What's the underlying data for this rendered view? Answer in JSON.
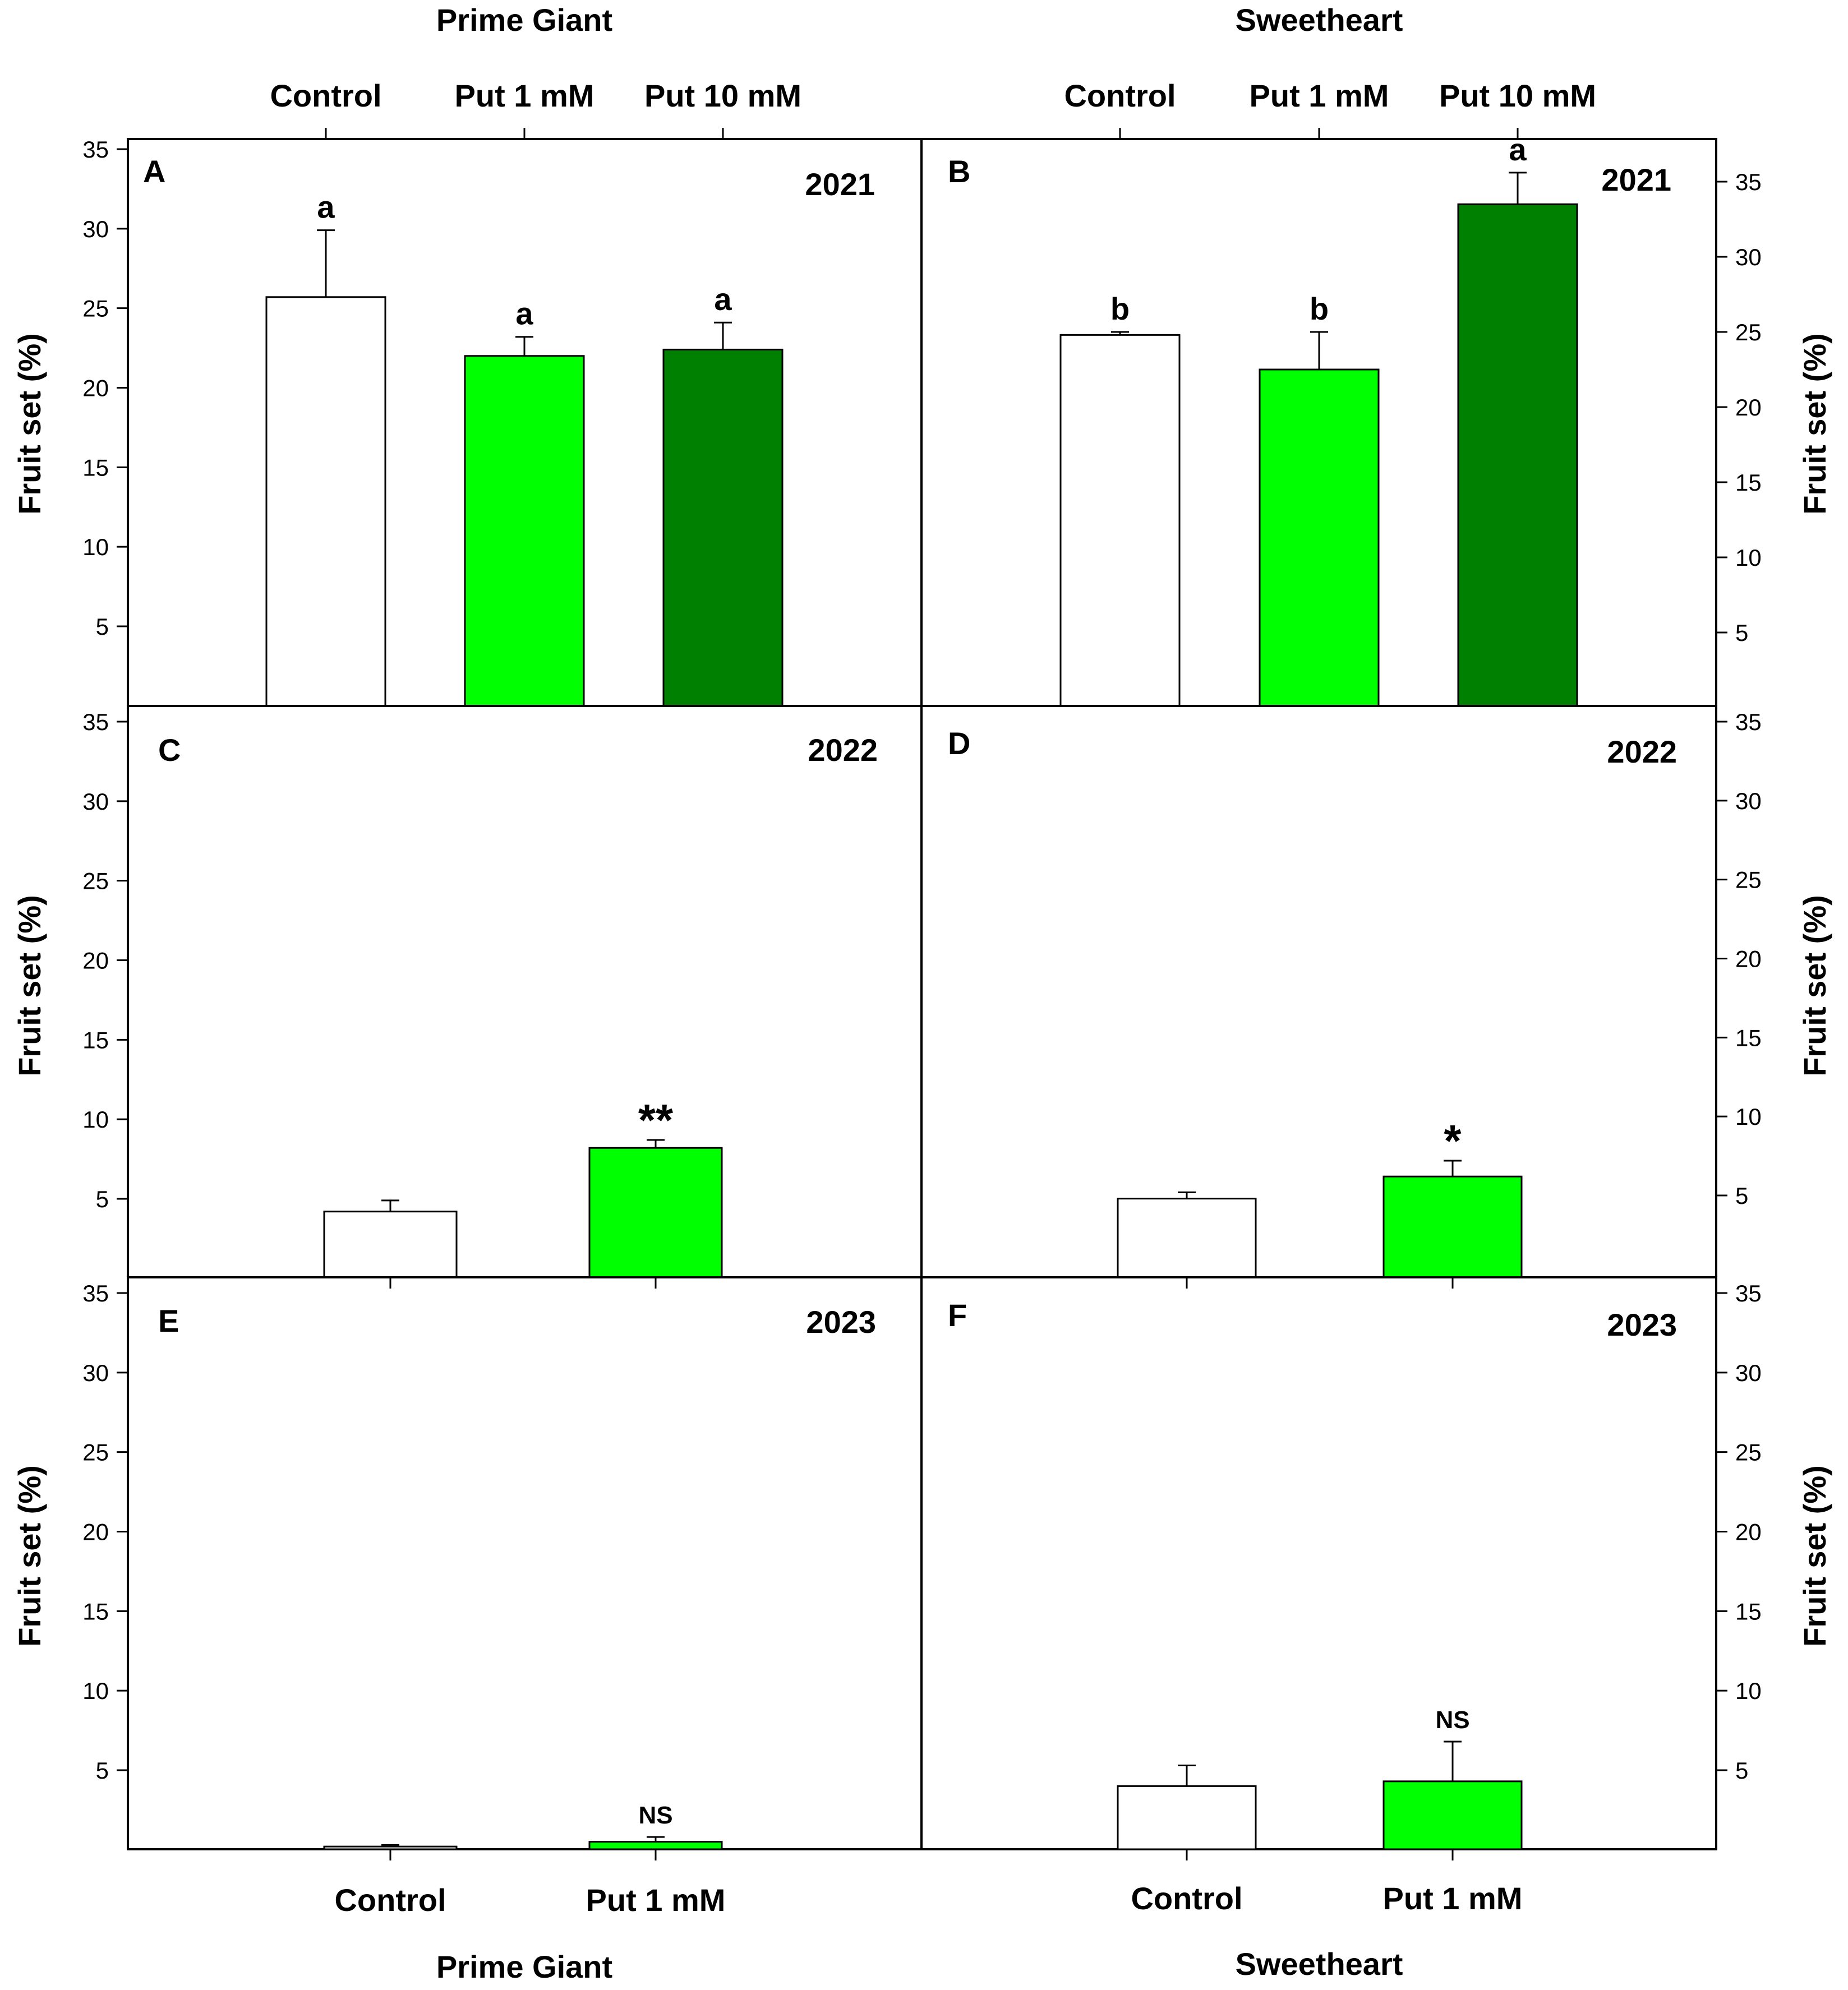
{
  "figure": {
    "top_groups": [
      {
        "title": "Prime Giant",
        "categories": [
          "Control",
          "Put 1 mM",
          "Put 10 mM"
        ]
      },
      {
        "title": "Sweetheart",
        "categories": [
          "Control",
          "Put 1 mM",
          "Put 10 mM"
        ]
      }
    ],
    "bottom_groups": [
      {
        "title": "Prime Giant",
        "categories": [
          "Control",
          "Put 1 mM"
        ]
      },
      {
        "title": "Sweetheart",
        "categories": [
          "Control",
          "Put 1 mM"
        ]
      }
    ],
    "y_axis_label": "Fruit set (%)"
  },
  "chart_data": [
    {
      "panel": "A",
      "year": "2021",
      "cultivar": "Prime Giant",
      "type": "bar",
      "categories": [
        "Control",
        "Put 1 mM",
        "Put 10 mM"
      ],
      "values": [
        25.7,
        22.0,
        22.4
      ],
      "errors": [
        4.2,
        1.2,
        1.7
      ],
      "annotations": [
        "a",
        "a",
        "a"
      ],
      "colors": [
        "#ffffff",
        "#00ff00",
        "#008000"
      ],
      "ylabel": "Fruit set (%)",
      "ylim": [
        0,
        35
      ],
      "yticks": [
        5,
        10,
        15,
        20,
        25,
        30,
        35
      ]
    },
    {
      "panel": "B",
      "year": "2021",
      "cultivar": "Sweetheart",
      "type": "bar",
      "categories": [
        "Control",
        "Put 1 mM",
        "Put 10 mM"
      ],
      "values": [
        24.8,
        22.5,
        33.5
      ],
      "errors": [
        0.2,
        2.5,
        2.1
      ],
      "annotations": [
        "b",
        "b",
        "a"
      ],
      "colors": [
        "#ffffff",
        "#00ff00",
        "#008000"
      ],
      "ylabel": "Fruit set (%)",
      "ylim": [
        0,
        37
      ],
      "yticks": [
        5,
        10,
        15,
        20,
        25,
        30,
        35
      ]
    },
    {
      "panel": "C",
      "year": "2022",
      "cultivar": "Prime Giant",
      "type": "bar",
      "categories": [
        "Control",
        "Put 1 mM"
      ],
      "values": [
        4.2,
        8.2
      ],
      "errors": [
        0.7,
        0.5
      ],
      "annotations": [
        "",
        "**"
      ],
      "colors": [
        "#ffffff",
        "#00ff00"
      ],
      "ylabel": "Fruit set (%)",
      "ylim": [
        0,
        35
      ],
      "yticks": [
        5,
        10,
        15,
        20,
        25,
        30,
        35
      ]
    },
    {
      "panel": "D",
      "year": "2022",
      "cultivar": "Sweetheart",
      "type": "bar",
      "categories": [
        "Control",
        "Put 1 mM"
      ],
      "values": [
        4.8,
        6.2
      ],
      "errors": [
        0.4,
        1.0
      ],
      "annotations": [
        "",
        "*"
      ],
      "colors": [
        "#ffffff",
        "#00ff00"
      ],
      "ylabel": "Fruit set (%)",
      "ylim": [
        0,
        35
      ],
      "yticks": [
        5,
        10,
        15,
        20,
        25,
        30,
        35
      ]
    },
    {
      "panel": "E",
      "year": "2023",
      "cultivar": "Prime Giant",
      "type": "bar",
      "categories": [
        "Control",
        "Put 1 mM"
      ],
      "values": [
        0.2,
        0.5
      ],
      "errors": [
        0.1,
        0.3
      ],
      "annotations": [
        "",
        "NS"
      ],
      "colors": [
        "#ffffff",
        "#00ff00"
      ],
      "ylabel": "Fruit set (%)",
      "ylim": [
        0,
        35
      ],
      "yticks": [
        5,
        10,
        15,
        20,
        25,
        30,
        35
      ]
    },
    {
      "panel": "F",
      "year": "2023",
      "cultivar": "Sweetheart",
      "type": "bar",
      "categories": [
        "Control",
        "Put 1 mM"
      ],
      "values": [
        4.0,
        4.3
      ],
      "errors": [
        1.3,
        2.5
      ],
      "annotations": [
        "",
        "NS"
      ],
      "colors": [
        "#ffffff",
        "#00ff00"
      ],
      "ylabel": "Fruit set (%)",
      "ylim": [
        0,
        35
      ],
      "yticks": [
        5,
        10,
        15,
        20,
        25,
        30,
        35
      ]
    }
  ]
}
